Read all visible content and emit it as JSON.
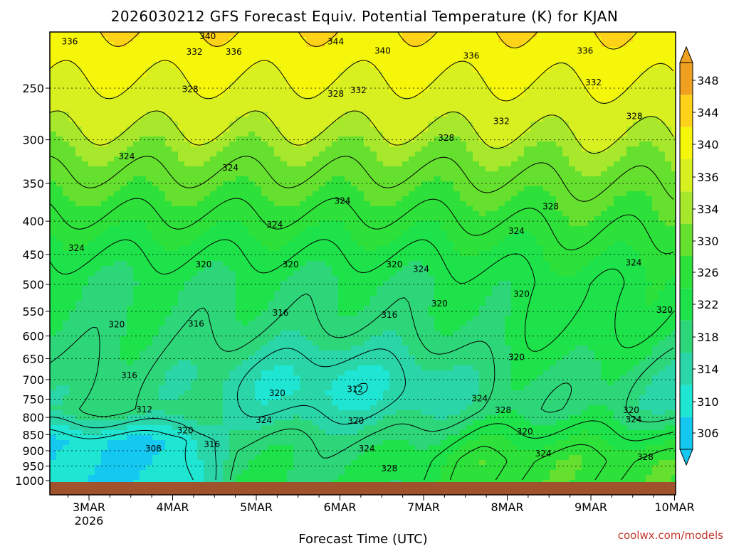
{
  "chart_data": {
    "type": "heatmap",
    "title": "2026030212 GFS Forecast Equiv. Potential Temperature (K) for KJAN",
    "xlabel": "Forecast Time (UTC)",
    "ylabel": "",
    "x_ticks": [
      {
        "label": "3MAR",
        "sub": "2026",
        "day": 3
      },
      {
        "label": "4MAR",
        "sub": "",
        "day": 4
      },
      {
        "label": "5MAR",
        "sub": "",
        "day": 5
      },
      {
        "label": "6MAR",
        "sub": "",
        "day": 6
      },
      {
        "label": "7MAR",
        "sub": "",
        "day": 7
      },
      {
        "label": "8MAR",
        "sub": "",
        "day": 8
      },
      {
        "label": "9MAR",
        "sub": "",
        "day": 9
      },
      {
        "label": "10MAR",
        "sub": "",
        "day": 10
      }
    ],
    "xlim": [
      2.54,
      10.0
    ],
    "y_ticks": [
      250,
      300,
      350,
      400,
      450,
      500,
      550,
      600,
      650,
      700,
      750,
      800,
      850,
      900,
      950,
      1000
    ],
    "ylim_hpa": [
      200,
      1000
    ],
    "colorbar": {
      "levels": [
        306,
        310,
        314,
        318,
        322,
        326,
        330,
        334,
        336,
        340,
        344,
        348
      ],
      "tick_labels": [
        "306",
        "310",
        "314",
        "318",
        "322",
        "326",
        "330",
        "334",
        "336",
        "340",
        "344",
        "348"
      ],
      "colors": [
        "#14c8f0",
        "#1ee6d2",
        "#2ad6a8",
        "#2ed67a",
        "#1ee24a",
        "#2de03a",
        "#66e02e",
        "#a8e82c",
        "#d8f020",
        "#f6f60a",
        "#ffd21a",
        "#f0a020"
      ]
    },
    "contour_labels": [
      {
        "text": "336",
        "day": 2.77,
        "p": 212
      },
      {
        "text": "340",
        "day": 4.42,
        "p": 208
      },
      {
        "text": "332",
        "day": 4.26,
        "p": 220
      },
      {
        "text": "336",
        "day": 4.73,
        "p": 220
      },
      {
        "text": "344",
        "day": 5.95,
        "p": 212
      },
      {
        "text": "340",
        "day": 6.51,
        "p": 219
      },
      {
        "text": "336",
        "day": 7.57,
        "p": 223
      },
      {
        "text": "336",
        "day": 8.93,
        "p": 219
      },
      {
        "text": "332",
        "day": 9.03,
        "p": 245
      },
      {
        "text": "328",
        "day": 4.21,
        "p": 251
      },
      {
        "text": "328",
        "day": 5.95,
        "p": 255
      },
      {
        "text": "332",
        "day": 6.22,
        "p": 252
      },
      {
        "text": "332",
        "day": 7.93,
        "p": 281
      },
      {
        "text": "328",
        "day": 9.52,
        "p": 276
      },
      {
        "text": "328",
        "day": 7.27,
        "p": 298
      },
      {
        "text": "324",
        "day": 3.45,
        "p": 318
      },
      {
        "text": "324",
        "day": 4.69,
        "p": 331
      },
      {
        "text": "324",
        "day": 6.03,
        "p": 372
      },
      {
        "text": "328",
        "day": 8.52,
        "p": 380
      },
      {
        "text": "324",
        "day": 5.22,
        "p": 405
      },
      {
        "text": "324",
        "day": 8.11,
        "p": 414
      },
      {
        "text": "324",
        "day": 2.85,
        "p": 440
      },
      {
        "text": "320",
        "day": 4.37,
        "p": 466
      },
      {
        "text": "320",
        "day": 5.41,
        "p": 466
      },
      {
        "text": "320",
        "day": 6.65,
        "p": 466
      },
      {
        "text": "324",
        "day": 6.97,
        "p": 474
      },
      {
        "text": "324",
        "day": 9.51,
        "p": 463
      },
      {
        "text": "320",
        "day": 8.17,
        "p": 517
      },
      {
        "text": "316",
        "day": 5.29,
        "p": 553
      },
      {
        "text": "320",
        "day": 7.19,
        "p": 535
      },
      {
        "text": "316",
        "day": 6.59,
        "p": 557
      },
      {
        "text": "320",
        "day": 9.88,
        "p": 547
      },
      {
        "text": "320",
        "day": 3.33,
        "p": 576
      },
      {
        "text": "316",
        "day": 4.28,
        "p": 575
      },
      {
        "text": "320",
        "day": 8.11,
        "p": 647
      },
      {
        "text": "316",
        "day": 3.48,
        "p": 690
      },
      {
        "text": "312",
        "day": 6.18,
        "p": 724
      },
      {
        "text": "320",
        "day": 5.25,
        "p": 734
      },
      {
        "text": "324",
        "day": 7.67,
        "p": 748
      },
      {
        "text": "328",
        "day": 7.95,
        "p": 780
      },
      {
        "text": "312",
        "day": 3.66,
        "p": 778
      },
      {
        "text": "320",
        "day": 9.48,
        "p": 780
      },
      {
        "text": "324",
        "day": 5.09,
        "p": 808
      },
      {
        "text": "320",
        "day": 6.19,
        "p": 810
      },
      {
        "text": "324",
        "day": 9.51,
        "p": 806
      },
      {
        "text": "320",
        "day": 4.15,
        "p": 838
      },
      {
        "text": "320",
        "day": 8.21,
        "p": 841
      },
      {
        "text": "316",
        "day": 4.47,
        "p": 880
      },
      {
        "text": "308",
        "day": 3.77,
        "p": 893
      },
      {
        "text": "324",
        "day": 6.32,
        "p": 893
      },
      {
        "text": "324",
        "day": 8.43,
        "p": 909
      },
      {
        "text": "328",
        "day": 6.59,
        "p": 958
      },
      {
        "text": "328",
        "day": 9.65,
        "p": 920
      }
    ]
  },
  "credit": "coolwx.com/models"
}
